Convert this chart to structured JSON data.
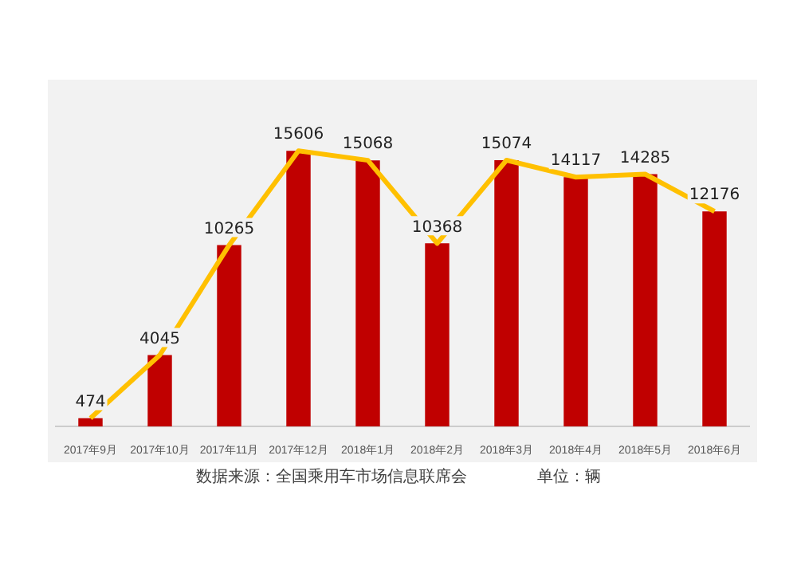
{
  "chart_data": {
    "type": "bar",
    "categories": [
      "2017年9月",
      "2017年10月",
      "2017年11月",
      "2017年12月",
      "2018年1月",
      "2018年2月",
      "2018年3月",
      "2018年4月",
      "2018年5月",
      "2018年6月"
    ],
    "series": [
      {
        "color": "#c00000",
        "values": [
          474,
          4045,
          10265,
          15606,
          15068,
          10368,
          15074,
          14117,
          14285,
          12176
        ],
        "value_labels": [
          "474",
          "4045",
          "10265",
          "15606",
          "15068",
          "10368",
          "15074",
          "14117",
          "14285",
          "12176"
        ]
      },
      {
        "type": "line",
        "color": "#ffc000",
        "values": [
          474,
          4045,
          10265,
          15606,
          15068,
          10368,
          15074,
          14117,
          14285,
          12176
        ]
      }
    ],
    "grid": false,
    "legend": false,
    "marker": "none",
    "line_style": "solid",
    "annotations": [
      "数据来源：全国乘用车市场信息联席会",
      "单位：辆"
    ]
  }
}
